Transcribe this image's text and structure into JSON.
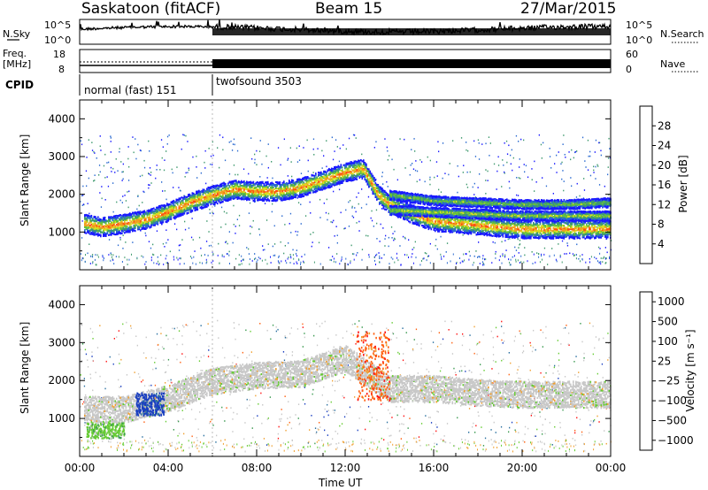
{
  "header": {
    "station": "Saskatoon (fitACF)",
    "beam": "Beam 15",
    "date": "27/Mar/2015"
  },
  "nsky_panel": {
    "label": "N.Sky",
    "right_label": "N.Search",
    "left_ticks": [
      "10^5",
      "10^0"
    ],
    "right_ticks": [
      "10^5",
      "10^0"
    ]
  },
  "freq_panel": {
    "label_line1": "Freq.",
    "label_line2": "[MHz]",
    "left_ticks": [
      "18",
      "8"
    ],
    "right_label": "Nave",
    "right_ticks": [
      "60",
      "0"
    ]
  },
  "cpid": {
    "label": "CPID",
    "segments": [
      {
        "name": "normal (fast) 151",
        "start_hour": 0,
        "end_hour": 6
      },
      {
        "name": "twofsound 3503",
        "start_hour": 6,
        "end_hour": 24
      }
    ]
  },
  "chart_data": [
    {
      "type": "heatmap",
      "title": "",
      "xlabel": "Time UT",
      "ylabel": "Slant Range [km]",
      "xlim": [
        0,
        24
      ],
      "ylim": [
        0,
        4500
      ],
      "x_ticks": [
        "00:00",
        "04:00",
        "08:00",
        "12:00",
        "16:00",
        "20:00",
        "00:00"
      ],
      "y_ticks": [
        1000,
        2000,
        3000,
        4000
      ],
      "colorbar": {
        "label": "Power [dB]",
        "ticks": [
          4,
          8,
          12,
          16,
          20,
          24,
          28
        ],
        "colors": [
          "#1a1aff",
          "#2a6ad0",
          "#3f9a6e",
          "#66c23a",
          "#d8e020",
          "#f0a020",
          "#ff5010",
          "#ff1010"
        ]
      },
      "features": [
        {
          "kind": "band",
          "x": [
            0.2,
            1,
            2,
            3,
            4,
            5,
            6,
            7,
            8,
            9,
            10,
            11,
            12,
            12.8,
            13.5,
            14,
            15,
            16,
            18,
            20,
            22,
            24
          ],
          "y": [
            1250,
            1150,
            1250,
            1350,
            1550,
            1800,
            2000,
            2150,
            2100,
            2100,
            2200,
            2400,
            2600,
            2700,
            2000,
            1750,
            1500,
            1300,
            1200,
            1100,
            1100,
            1100
          ],
          "width": 500,
          "intensity": 28
        },
        {
          "kind": "band",
          "x": [
            14,
            16,
            18,
            20,
            22,
            24
          ],
          "y": [
            2000,
            1850,
            1800,
            1750,
            1750,
            1800
          ],
          "width": 250,
          "intensity": 18
        },
        {
          "kind": "band",
          "x": [
            14,
            16,
            18,
            20,
            22,
            24
          ],
          "y": [
            1600,
            1550,
            1500,
            1450,
            1450,
            1450
          ],
          "width": 250,
          "intensity": 20
        }
      ]
    },
    {
      "type": "heatmap",
      "title": "",
      "xlabel": "Time UT",
      "ylabel": "Slant Range [km]",
      "xlim": [
        0,
        24
      ],
      "ylim": [
        0,
        4500
      ],
      "x_ticks": [
        "00:00",
        "04:00",
        "08:00",
        "12:00",
        "16:00",
        "20:00",
        "00:00"
      ],
      "y_ticks": [
        1000,
        2000,
        3000,
        4000
      ],
      "colorbar": {
        "label": "Velocity [m s⁻¹]",
        "ticks": [
          "1000",
          "500",
          "100",
          "25",
          "−25",
          "−100",
          "−500",
          "−1000"
        ],
        "colors": [
          "#1a3fc0",
          "#2a70a0",
          "#3a9a50",
          "#66cc33",
          "#c8c8c8",
          "#f0a030",
          "#ff6010",
          "#ff1010"
        ]
      },
      "features": [
        {
          "kind": "band",
          "x": [
            0.2,
            2,
            4,
            6,
            8,
            10,
            12,
            13.5,
            14,
            16,
            18,
            20,
            22,
            24
          ],
          "y": [
            1250,
            1250,
            1550,
            2000,
            2150,
            2200,
            2600,
            2000,
            1800,
            1800,
            1700,
            1650,
            1650,
            1650
          ],
          "width": 700,
          "value": 0
        },
        {
          "kind": "patch",
          "x": [
            2.5,
            3.8
          ],
          "y": [
            1100,
            1700
          ],
          "value": 1000
        },
        {
          "kind": "patch",
          "x": [
            12.5,
            14
          ],
          "y": [
            1500,
            3300
          ],
          "value": -400
        },
        {
          "kind": "patch",
          "x": [
            0.3,
            2
          ],
          "y": [
            500,
            900
          ],
          "value": 150
        }
      ]
    }
  ]
}
